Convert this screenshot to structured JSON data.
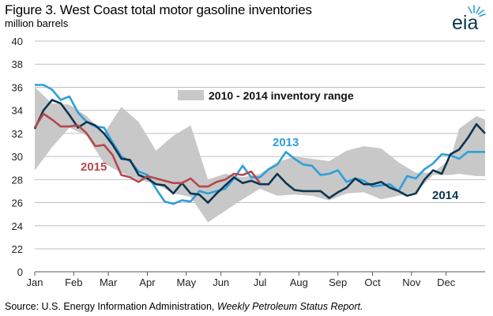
{
  "title": "Figure 3. West Coast total motor gasoline inventories",
  "subtitle": "million barrels",
  "source": {
    "prefix": "Source: U.S. Energy Information Administration, ",
    "report": "Weekly Petroleum Status Report."
  },
  "logo": {
    "text": "eia",
    "icon": "eia-sunburst-logo"
  },
  "colors": {
    "range": "#c8c8c8",
    "s2013": "#2f9fd8",
    "s2014": "#0d3550",
    "s2015": "#b5474f",
    "grid": "#bfbfbf"
  },
  "chart_data": {
    "type": "line",
    "title": "Figure 3. West Coast total motor gasoline inventories",
    "ylabel": "million barrels",
    "ylim": [
      0,
      40
    ],
    "yticks": [
      0,
      22,
      24,
      26,
      28,
      30,
      32,
      34,
      36,
      38,
      40
    ],
    "x_unit": "week of year",
    "xlim": [
      1,
      53
    ],
    "month_labels": [
      "Jan",
      "Feb",
      "Mar",
      "Apr",
      "May",
      "Jun",
      "Jul",
      "Aug",
      "Sep",
      "Oct",
      "Nov",
      "Dec"
    ],
    "month_start_weeks": [
      1,
      5.5,
      9.5,
      14,
      18.5,
      22.5,
      27,
      31.5,
      36,
      40,
      44.5,
      48.5
    ],
    "grid": true,
    "range": {
      "name": "2010 - 2014 inventory range",
      "x": [
        1,
        3,
        5,
        7,
        9,
        11,
        13,
        15,
        17,
        19,
        21,
        23,
        25,
        27,
        29,
        31,
        33,
        35,
        37,
        39,
        41,
        43,
        45,
        47,
        49,
        50,
        52,
        53
      ],
      "high": [
        36,
        34.6,
        34.5,
        33.5,
        32,
        34.3,
        33,
        30.5,
        31.8,
        32.7,
        28,
        28.5,
        28.2,
        28.5,
        29.5,
        30,
        29.8,
        29.6,
        30.5,
        30.9,
        30.7,
        29.5,
        28.6,
        28.6,
        29.8,
        32.4,
        33.5,
        33.2
      ],
      "low": [
        28.8,
        30.8,
        32.5,
        31.8,
        29.4,
        28.6,
        28,
        27.6,
        26.8,
        26.5,
        24.3,
        25.3,
        26.3,
        27.2,
        26.6,
        26.7,
        26.6,
        26.2,
        26.8,
        26.9,
        26.3,
        26.6,
        26.9,
        28.4,
        28.4,
        28.5,
        28.3,
        28.3
      ]
    },
    "series": [
      {
        "name": "2013",
        "x": [
          1,
          2,
          3,
          4,
          5,
          6,
          7,
          8,
          9,
          10,
          11,
          12,
          13,
          14,
          15,
          16,
          17,
          18,
          19,
          20,
          21,
          22,
          23,
          24,
          25,
          26,
          27,
          28,
          29,
          30,
          31,
          32,
          33,
          34,
          35,
          36,
          37,
          38,
          39,
          40,
          41,
          42,
          43,
          44,
          45,
          46,
          47,
          48,
          49,
          50,
          51,
          52,
          53
        ],
        "values": [
          36.2,
          36.2,
          35.8,
          34.9,
          35.2,
          33.8,
          33.0,
          32.6,
          32.5,
          31.2,
          30.0,
          29.6,
          28.7,
          28.4,
          27.2,
          26.1,
          25.9,
          26.2,
          26.1,
          27.0,
          26.8,
          27.0,
          27.2,
          28.1,
          29.2,
          28.2,
          28.2,
          28.9,
          29.3,
          30.4,
          29.8,
          29.3,
          29.2,
          28.4,
          28.5,
          28.8,
          27.8,
          28.1,
          27.9,
          27.4,
          27.5,
          27.6,
          27.0,
          28.3,
          28.1,
          28.9,
          29.4,
          30.2,
          30.1,
          29.8,
          30.4,
          30.4,
          30.4
        ]
      },
      {
        "name": "2014",
        "x": [
          1,
          2,
          3,
          4,
          5,
          6,
          7,
          8,
          9,
          10,
          11,
          12,
          13,
          14,
          15,
          16,
          17,
          18,
          19,
          20,
          21,
          22,
          23,
          24,
          25,
          26,
          27,
          28,
          29,
          30,
          31,
          32,
          33,
          34,
          35,
          36,
          37,
          38,
          39,
          40,
          41,
          42,
          43,
          44,
          45,
          46,
          47,
          48,
          49,
          50,
          51,
          52,
          53
        ],
        "values": [
          32.4,
          34.0,
          34.9,
          34.6,
          33.6,
          32.5,
          33.0,
          32.7,
          32.0,
          31.0,
          29.8,
          29.7,
          28.4,
          28.1,
          27.6,
          27.5,
          26.8,
          27.7,
          26.8,
          26.7,
          26.0,
          26.8,
          27.5,
          28.2,
          27.7,
          27.9,
          27.6,
          27.6,
          28.5,
          27.7,
          27.1,
          27.0,
          27.0,
          27.0,
          26.4,
          26.9,
          27.3,
          28.1,
          27.6,
          27.6,
          27.8,
          27.3,
          27.0,
          26.6,
          26.8,
          28.0,
          28.8,
          28.5,
          30.2,
          30.6,
          31.6,
          32.8,
          32.0
        ]
      },
      {
        "name": "2015",
        "x": [
          1,
          2,
          3,
          4,
          5,
          6,
          7,
          8,
          9,
          10,
          11,
          12,
          13,
          14,
          15,
          16,
          17,
          18,
          19,
          20,
          21,
          22,
          23,
          24,
          25,
          26,
          27
        ],
        "values": [
          32.5,
          33.7,
          33.2,
          32.6,
          32.6,
          32.7,
          32.0,
          30.9,
          31.0,
          30.1,
          28.4,
          28.2,
          27.8,
          28.3,
          28.1,
          27.9,
          27.7,
          27.7,
          28.1,
          27.4,
          27.4,
          27.8,
          28.0,
          28.5,
          28.4,
          28.7,
          27.7
        ]
      }
    ],
    "annotations": [
      {
        "text": "2010 - 2014 inventory range",
        "target": "range"
      },
      {
        "text": "2013",
        "target": "2013"
      },
      {
        "text": "2014",
        "target": "2014"
      },
      {
        "text": "2015",
        "target": "2015"
      }
    ]
  }
}
